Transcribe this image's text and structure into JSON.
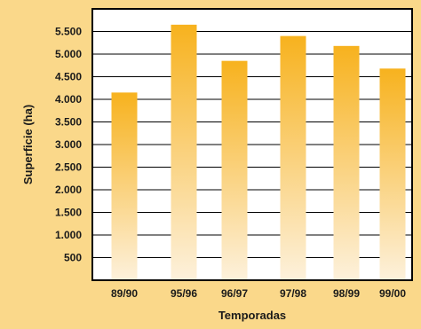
{
  "chart_data": {
    "type": "bar",
    "categories": [
      "89/90",
      "95/96",
      "96/97",
      "97/98",
      "98/99",
      "99/00"
    ],
    "values": [
      4150,
      5650,
      4850,
      5400,
      5180,
      4680
    ],
    "xlabel": "Temporadas",
    "ylabel": "Superficie (ha)",
    "y_ticks": [
      500,
      1000,
      1500,
      2000,
      2500,
      3000,
      3500,
      4000,
      4500,
      5000,
      5500
    ],
    "y_tick_labels": [
      "500",
      "1.000",
      "1.500",
      "2.000",
      "2.500",
      "3.000",
      "3.500",
      "4.000",
      "4.500",
      "5.000",
      "5.500"
    ],
    "ylim": [
      0,
      6000
    ],
    "grid": true,
    "legend": "none"
  },
  "colors": {
    "background": "#fad88a",
    "plot_background": "#ffffff",
    "bar_top": "#f7b21e",
    "bar_bottom": "#fdf1dc",
    "grid": "#000000"
  }
}
